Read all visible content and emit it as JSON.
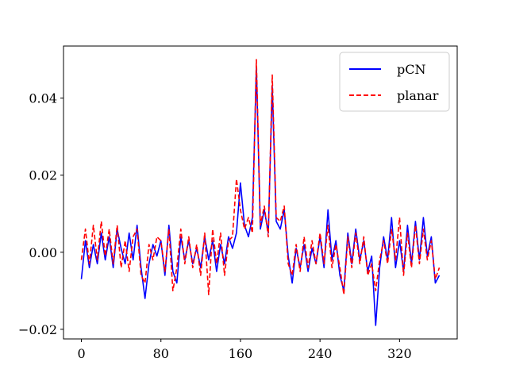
{
  "chart_data": {
    "type": "line",
    "title": "",
    "xlabel": "",
    "ylabel": "",
    "xlim": [
      -18,
      378
    ],
    "ylim": [
      -0.0225,
      0.0535
    ],
    "grid": false,
    "legend_position": "upper right",
    "x_ticks": [
      0,
      80,
      160,
      240,
      320
    ],
    "x_tick_labels": [
      "0",
      "80",
      "160",
      "240",
      "320"
    ],
    "y_ticks": [
      -0.02,
      0.0,
      0.02,
      0.04
    ],
    "y_tick_labels": [
      "−0.02",
      "0.00",
      "0.02",
      "0.04"
    ],
    "series": [
      {
        "name": "pCN",
        "color": "#0000ff",
        "dash": "solid",
        "x": [
          0,
          4,
          8,
          12,
          16,
          20,
          24,
          28,
          32,
          36,
          40,
          44,
          48,
          52,
          56,
          60,
          64,
          68,
          72,
          76,
          80,
          84,
          88,
          92,
          96,
          100,
          104,
          108,
          112,
          116,
          120,
          124,
          128,
          132,
          136,
          140,
          144,
          148,
          152,
          156,
          160,
          164,
          168,
          172,
          176,
          180,
          184,
          188,
          192,
          196,
          200,
          204,
          208,
          212,
          216,
          220,
          224,
          228,
          232,
          236,
          240,
          244,
          248,
          252,
          256,
          260,
          264,
          268,
          272,
          276,
          280,
          284,
          288,
          292,
          296,
          300,
          304,
          308,
          312,
          316,
          320,
          324,
          328,
          332,
          336,
          340,
          344,
          348,
          352,
          356,
          360
        ],
        "values": [
          -0.007,
          0.003,
          -0.004,
          0.002,
          -0.003,
          0.005,
          -0.002,
          0.004,
          -0.004,
          0.006,
          0.001,
          -0.003,
          0.005,
          -0.002,
          0.007,
          -0.004,
          -0.012,
          -0.003,
          0.002,
          -0.001,
          0.003,
          -0.006,
          0.007,
          -0.005,
          -0.008,
          0.004,
          -0.002,
          0.003,
          -0.003,
          0.001,
          -0.004,
          0.004,
          -0.002,
          0.003,
          -0.005,
          0.002,
          -0.003,
          0.004,
          0.001,
          0.005,
          0.018,
          0.007,
          0.004,
          0.009,
          0.048,
          0.006,
          0.011,
          0.005,
          0.043,
          0.008,
          0.006,
          0.011,
          -0.001,
          -0.008,
          0.001,
          -0.004,
          0.002,
          -0.005,
          0.001,
          -0.003,
          0.004,
          -0.004,
          0.011,
          -0.002,
          0.003,
          -0.006,
          -0.01,
          0.005,
          -0.003,
          0.006,
          -0.002,
          0.003,
          -0.005,
          -0.001,
          -0.019,
          -0.004,
          0.004,
          -0.002,
          0.009,
          -0.004,
          0.003,
          -0.005,
          0.007,
          -0.003,
          0.008,
          -0.002,
          0.009,
          -0.001,
          0.004,
          -0.008,
          -0.006
        ]
      },
      {
        "name": "planar",
        "color": "#ff0000",
        "dash": "dashed",
        "x": [
          0,
          4,
          8,
          12,
          16,
          20,
          24,
          28,
          32,
          36,
          40,
          44,
          48,
          52,
          56,
          60,
          64,
          68,
          72,
          76,
          80,
          84,
          88,
          92,
          96,
          100,
          104,
          108,
          112,
          116,
          120,
          124,
          128,
          132,
          136,
          140,
          144,
          148,
          152,
          156,
          160,
          164,
          168,
          172,
          176,
          180,
          184,
          188,
          192,
          196,
          200,
          204,
          208,
          212,
          216,
          220,
          224,
          228,
          232,
          236,
          240,
          244,
          248,
          252,
          256,
          260,
          264,
          268,
          272,
          276,
          280,
          284,
          288,
          292,
          296,
          300,
          304,
          308,
          312,
          316,
          320,
          324,
          328,
          332,
          336,
          340,
          344,
          348,
          352,
          356,
          360
        ],
        "values": [
          -0.002,
          0.006,
          -0.003,
          0.007,
          -0.002,
          0.008,
          -0.001,
          0.006,
          -0.003,
          0.007,
          -0.004,
          0.003,
          -0.005,
          0.004,
          0.006,
          -0.006,
          -0.008,
          0.002,
          -0.002,
          0.004,
          0.003,
          -0.005,
          0.006,
          -0.01,
          -0.004,
          0.006,
          -0.003,
          0.004,
          -0.004,
          0.002,
          -0.006,
          0.005,
          -0.011,
          0.006,
          -0.003,
          0.005,
          -0.006,
          0.003,
          0.004,
          0.019,
          0.011,
          0.006,
          0.009,
          0.005,
          0.05,
          0.007,
          0.012,
          0.004,
          0.046,
          0.009,
          0.008,
          0.012,
          -0.003,
          -0.006,
          0.002,
          -0.005,
          0.004,
          -0.004,
          0.003,
          -0.003,
          0.005,
          -0.003,
          0.007,
          -0.004,
          0.002,
          -0.004,
          -0.011,
          0.004,
          -0.004,
          0.005,
          -0.003,
          0.004,
          -0.006,
          -0.003,
          -0.01,
          -0.002,
          0.003,
          -0.003,
          0.006,
          -0.002,
          0.009,
          -0.006,
          0.005,
          -0.004,
          0.007,
          -0.003,
          0.006,
          -0.002,
          0.003,
          -0.007,
          -0.004
        ]
      }
    ]
  }
}
